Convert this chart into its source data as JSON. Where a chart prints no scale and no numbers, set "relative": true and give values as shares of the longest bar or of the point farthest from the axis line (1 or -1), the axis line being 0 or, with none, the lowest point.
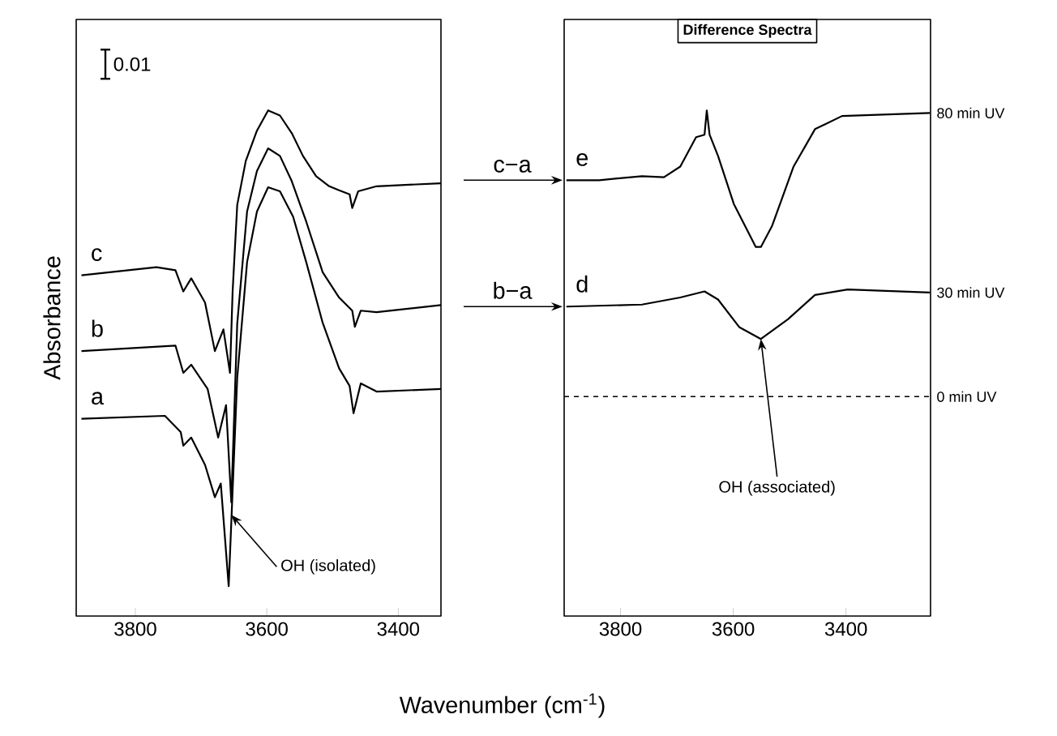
{
  "chart_data": [
    {
      "type": "line",
      "relative": true,
      "ylabel": "Absorbance",
      "xlabel": "Wavenumber (cm$^{-1}$)",
      "xlim": [
        3890,
        3335
      ],
      "xticks": [
        3800,
        3600,
        3400
      ],
      "tick_labels": "x",
      "line_style": "solid",
      "annotations": [
        "0.01",
        {
          "text": "OH (isolated)",
          "x": 3654,
          "y": 0.2
        }
      ],
      "series": [
        {
          "name": "c",
          "color": "#000000",
          "x": [
            3882,
            3768,
            3739,
            3727,
            3715,
            3694,
            3679,
            3666,
            3656,
            3652,
            3645,
            3632,
            3615,
            3598,
            3580,
            3562,
            3545,
            3525,
            3505,
            3490,
            3474,
            3470,
            3461,
            3433,
            3335
          ],
          "values": [
            0.674,
            0.69,
            0.684,
            0.642,
            0.668,
            0.62,
            0.524,
            0.567,
            0.481,
            0.642,
            0.813,
            0.9,
            0.96,
            1.0,
            0.99,
            0.955,
            0.91,
            0.87,
            0.85,
            0.842,
            0.834,
            0.807,
            0.84,
            0.85,
            0.856
          ]
        },
        {
          "name": "b",
          "color": "#000000",
          "x": [
            3882,
            3739,
            3727,
            3715,
            3690,
            3674,
            3662,
            3654,
            3645,
            3630,
            3615,
            3598,
            3580,
            3562,
            3540,
            3515,
            3490,
            3470,
            3466,
            3457,
            3433,
            3335
          ],
          "values": [
            0.524,
            0.535,
            0.481,
            0.497,
            0.449,
            0.353,
            0.417,
            0.225,
            0.578,
            0.8,
            0.88,
            0.925,
            0.91,
            0.86,
            0.78,
            0.68,
            0.63,
            0.604,
            0.572,
            0.604,
            0.601,
            0.615
          ]
        },
        {
          "name": "a",
          "color": "#000000",
          "x": [
            3882,
            3755,
            3731,
            3727,
            3715,
            3694,
            3679,
            3670,
            3658,
            3645,
            3630,
            3615,
            3598,
            3580,
            3560,
            3540,
            3515,
            3490,
            3474,
            3468,
            3457,
            3433,
            3335
          ],
          "values": [
            0.39,
            0.396,
            0.364,
            0.337,
            0.353,
            0.299,
            0.235,
            0.262,
            0.059,
            0.471,
            0.7,
            0.8,
            0.848,
            0.84,
            0.79,
            0.7,
            0.58,
            0.49,
            0.455,
            0.401,
            0.46,
            0.444,
            0.449
          ]
        }
      ]
    },
    {
      "type": "line",
      "relative": true,
      "title": "Difference Spectra",
      "xlim": [
        3900,
        3250
      ],
      "xticks": [
        3800,
        3600,
        3400
      ],
      "tick_labels": "x",
      "line_style": "solid",
      "annotations": [
        {
          "text": "c−a",
          "x": 3900,
          "y": 0.862
        },
        {
          "text": "b−a",
          "x": 3900,
          "y": 0.612
        },
        {
          "text": "80 min UV",
          "x": 3250,
          "y": 0.995
        },
        {
          "text": "30 min UV",
          "x": 3250,
          "y": 0.64
        },
        {
          "text": "OH (associated)",
          "x": 3551,
          "y": 0.548
        }
      ],
      "ref_lines": [
        {
          "axis": "y",
          "value": 0.434,
          "label": "0 min UV",
          "color": "#000000",
          "line_style": "dashed"
        }
      ],
      "series": [
        {
          "name": "e",
          "color": "#000000",
          "x": [
            3896,
            3838,
            3762,
            3723,
            3694,
            3666,
            3651,
            3647,
            3642,
            3627,
            3599,
            3560,
            3551,
            3531,
            3493,
            3455,
            3407,
            3251
          ],
          "values": [
            0.862,
            0.862,
            0.87,
            0.868,
            0.889,
            0.947,
            0.952,
            1.0,
            0.952,
            0.91,
            0.815,
            0.73,
            0.73,
            0.772,
            0.889,
            0.963,
            0.989,
            0.995
          ]
        },
        {
          "name": "d",
          "color": "#000000",
          "x": [
            3896,
            3762,
            3694,
            3651,
            3627,
            3589,
            3551,
            3503,
            3455,
            3397,
            3251
          ],
          "values": [
            0.612,
            0.616,
            0.63,
            0.642,
            0.626,
            0.571,
            0.548,
            0.587,
            0.635,
            0.646,
            0.64
          ]
        }
      ]
    }
  ]
}
